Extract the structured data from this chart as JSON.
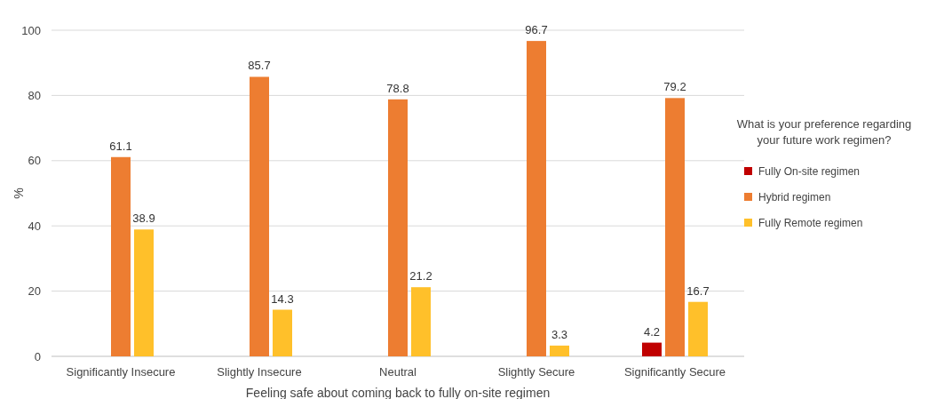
{
  "chart_data": {
    "type": "bar",
    "xlabel": "Feeling safe about coming back to fully on-site regimen",
    "ylabel": "%",
    "legend_title": "What is your preference regarding your future work regimen?",
    "categories": [
      "Significantly Insecure",
      "Slightly Insecure",
      "Neutral",
      "Slightly Secure",
      "Significantly Secure"
    ],
    "series": [
      {
        "name": "Fully On-site regimen",
        "color": "#c00000",
        "values": [
          null,
          null,
          null,
          null,
          4.2
        ]
      },
      {
        "name": "Hybrid regimen",
        "color": "#ed7d31",
        "values": [
          61.1,
          85.7,
          78.8,
          96.7,
          79.2
        ]
      },
      {
        "name": "Fully Remote regimen",
        "color": "#ffc02a",
        "values": [
          38.9,
          14.3,
          21.2,
          3.3,
          16.7
        ]
      }
    ],
    "ylim": [
      0,
      100
    ],
    "yticks": [
      0,
      20,
      40,
      60,
      80,
      100
    ],
    "grid": "y",
    "legend": "right",
    "data_labels": true
  }
}
